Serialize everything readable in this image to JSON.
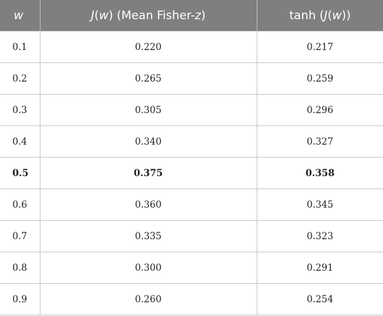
{
  "table": {
    "headers": {
      "col1": "w",
      "col2_fn": "J",
      "col2_open": "(",
      "col2_var": "w",
      "col2_close": ")",
      "col2_desc_pre": " (Mean Fisher-",
      "col2_desc_var": "z",
      "col2_desc_post": ")",
      "col3_pre": "tanh (",
      "col3_fn": "J",
      "col3_open": "(",
      "col3_var": "w",
      "col3_close": "))"
    },
    "rows": [
      {
        "w": "0.1",
        "J": "0.220",
        "tanh": "0.217",
        "bold": false
      },
      {
        "w": "0.2",
        "J": "0.265",
        "tanh": "0.259",
        "bold": false
      },
      {
        "w": "0.3",
        "J": "0.305",
        "tanh": "0.296",
        "bold": false
      },
      {
        "w": "0.4",
        "J": "0.340",
        "tanh": "0.327",
        "bold": false
      },
      {
        "w": "0.5",
        "J": "0.375",
        "tanh": "0.358",
        "bold": true
      },
      {
        "w": "0.6",
        "J": "0.360",
        "tanh": "0.345",
        "bold": false
      },
      {
        "w": "0.7",
        "J": "0.335",
        "tanh": "0.323",
        "bold": false
      },
      {
        "w": "0.8",
        "J": "0.300",
        "tanh": "0.291",
        "bold": false
      },
      {
        "w": "0.9",
        "J": "0.260",
        "tanh": "0.254",
        "bold": false
      }
    ]
  }
}
